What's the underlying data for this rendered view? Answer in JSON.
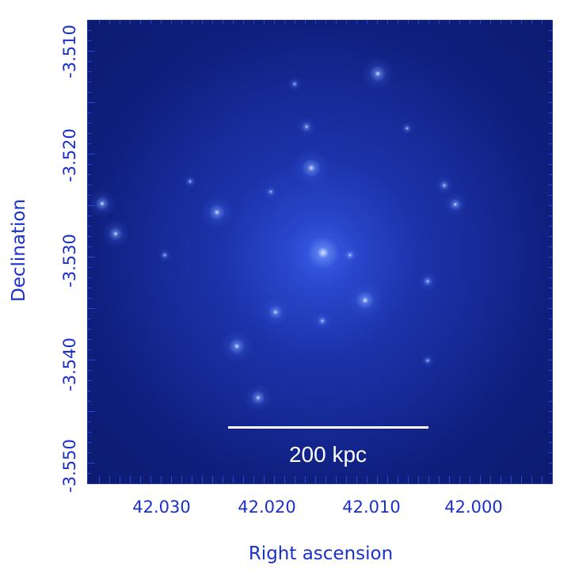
{
  "axes": {
    "x_title": "Right ascension",
    "y_title": "Declination",
    "x_ticks": [
      "42.030",
      "42.020",
      "42.010",
      "42.000"
    ],
    "y_ticks": [
      "-3.510",
      "-3.520",
      "-3.530",
      "-3.540",
      "-3.550"
    ]
  },
  "scale_bar": {
    "label": "200 kpc"
  },
  "colors": {
    "background": "#0f1f7e",
    "halo": "#3458e8",
    "axis_text": "#1a2fcc",
    "scale_bar": "#ffffff"
  }
}
